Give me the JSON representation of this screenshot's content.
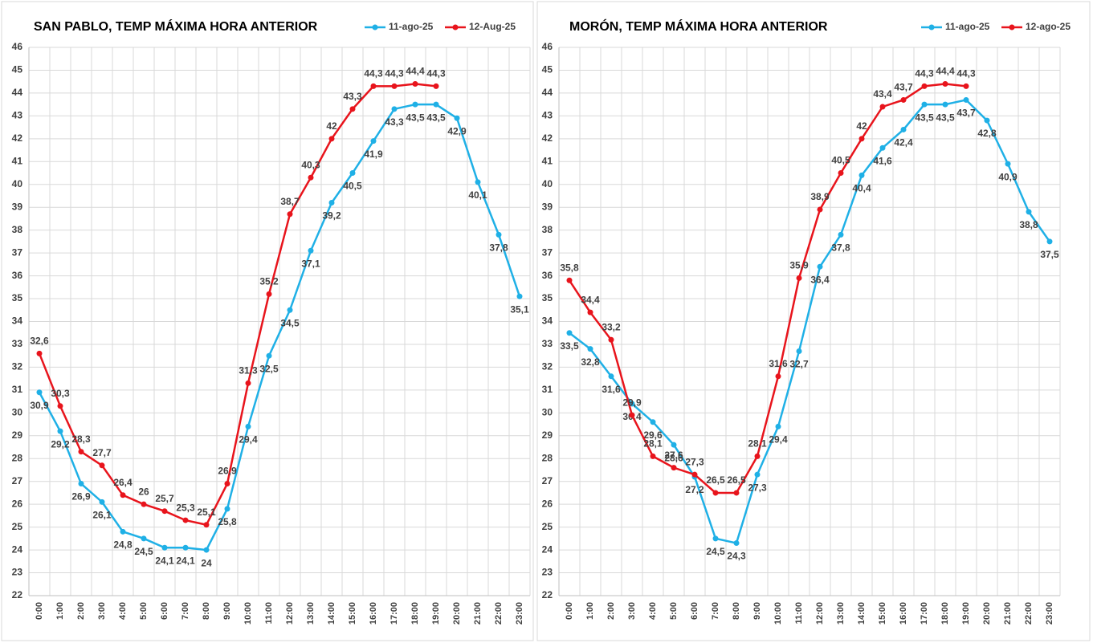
{
  "chart_data": [
    {
      "type": "line",
      "title": "SAN PABLO, TEMP MÁXIMA HORA ANTERIOR",
      "categories": [
        "0:00",
        "1:00",
        "2:00",
        "3:00",
        "4:00",
        "5:00",
        "6:00",
        "7:00",
        "8:00",
        "9:00",
        "10:00",
        "11:00",
        "12:00",
        "13:00",
        "14:00",
        "15:00",
        "16:00",
        "17:00",
        "18:00",
        "19:00",
        "20:00",
        "21:00",
        "22:00",
        "23:00"
      ],
      "series": [
        {
          "name": "11-ago-25",
          "color": "#1fb0e6",
          "values": [
            30.9,
            29.2,
            26.9,
            26.1,
            24.8,
            24.5,
            24.1,
            24.1,
            24,
            25.8,
            29.4,
            32.5,
            34.5,
            37.1,
            39.2,
            40.5,
            41.9,
            43.3,
            43.5,
            43.5,
            42.9,
            40.1,
            37.8,
            35.1
          ],
          "value_labels": [
            "30,9",
            "29,2",
            "26,9",
            "26,1",
            "24,8",
            "24,5",
            "24,1",
            "24,1",
            "24",
            "25,8",
            "29,4",
            "32,5",
            "34,5",
            "37,1",
            "39,2",
            "40,5",
            "41,9",
            "43,3",
            "43,5",
            "43,5",
            "42,9",
            "40,1",
            "37,8",
            "35,1"
          ]
        },
        {
          "name": "12-Aug-25",
          "color": "#e8141c",
          "values": [
            32.6,
            30.3,
            28.3,
            27.7,
            26.4,
            26,
            25.7,
            25.3,
            25.1,
            26.9,
            31.3,
            35.2,
            38.7,
            40.3,
            42,
            43.3,
            44.3,
            44.3,
            44.4,
            44.3,
            null,
            null,
            null,
            null
          ],
          "value_labels": [
            "32,6",
            "30,3",
            "28,3",
            "27,7",
            "26,4",
            "26",
            "25,7",
            "25,3",
            "25,1",
            "26,9",
            "31,3",
            "35,2",
            "38,7",
            "40,3",
            "42",
            "43,3",
            "44,3",
            "44,3",
            "44,4",
            "44,3",
            null,
            null,
            null,
            null
          ]
        }
      ],
      "ylim": [
        22,
        46
      ],
      "yticks": [
        22,
        23,
        24,
        25,
        26,
        27,
        28,
        29,
        30,
        31,
        32,
        33,
        34,
        35,
        36,
        37,
        38,
        39,
        40,
        41,
        42,
        43,
        44,
        45,
        46
      ],
      "grid": true,
      "legend": "top"
    },
    {
      "type": "line",
      "title": "MORÓN, TEMP MÁXIMA HORA ANTERIOR",
      "categories": [
        "0:00",
        "1:00",
        "2:00",
        "3:00",
        "4:00",
        "5:00",
        "6:00",
        "7:00",
        "8:00",
        "9:00",
        "10:00",
        "11:00",
        "12:00",
        "13:00",
        "14:00",
        "15:00",
        "16:00",
        "17:00",
        "18:00",
        "19:00",
        "20:00",
        "21:00",
        "22:00",
        "23:00"
      ],
      "series": [
        {
          "name": "11-ago-25",
          "color": "#1fb0e6",
          "values": [
            33.5,
            32.8,
            31.6,
            30.4,
            29.6,
            28.6,
            27.2,
            24.5,
            24.3,
            27.3,
            29.4,
            32.7,
            36.4,
            37.8,
            40.4,
            41.6,
            42.4,
            43.5,
            43.5,
            43.7,
            42.8,
            40.9,
            38.8,
            37.5
          ],
          "value_labels": [
            "33,5",
            "32,8",
            "31,6",
            "30,4",
            "29,6",
            "28,6",
            "27,2",
            "24,5",
            "24,3",
            "27,3",
            "29,4",
            "32,7",
            "36,4",
            "37,8",
            "40,4",
            "41,6",
            "42,4",
            "43,5",
            "43,5",
            "43,7",
            "42,8",
            "40,9",
            "38,8",
            "37,5"
          ]
        },
        {
          "name": "12-ago-25",
          "color": "#e8141c",
          "values": [
            35.8,
            34.4,
            33.2,
            29.9,
            28.1,
            27.6,
            27.3,
            26.5,
            26.5,
            28.1,
            31.6,
            35.9,
            38.9,
            40.5,
            42,
            43.4,
            43.7,
            44.3,
            44.4,
            44.3,
            null,
            null,
            null,
            null
          ],
          "value_labels": [
            "35,8",
            "34,4",
            "33,2",
            "29,9",
            "28,1",
            "27,6",
            "27,3",
            "26,5",
            "26,5",
            "28,1",
            "31,6",
            "35,9",
            "38,9",
            "40,5",
            "42",
            "43,4",
            "43,7",
            "44,3",
            "44,4",
            "44,3",
            null,
            null,
            null,
            null
          ]
        }
      ],
      "ylim": [
        22,
        46
      ],
      "yticks": [
        22,
        23,
        24,
        25,
        26,
        27,
        28,
        29,
        30,
        31,
        32,
        33,
        34,
        35,
        36,
        37,
        38,
        39,
        40,
        41,
        42,
        43,
        44,
        45,
        46
      ],
      "grid": true,
      "legend": "top"
    }
  ]
}
